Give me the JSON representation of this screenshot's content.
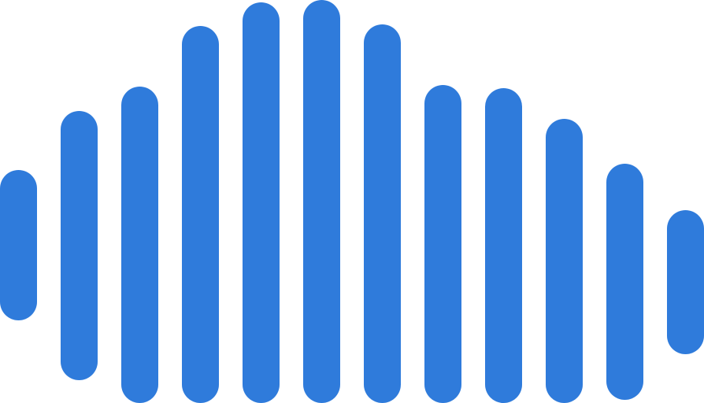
{
  "logo": {
    "icon": "audio-waveform-icon",
    "bar_color": "#2f7bdb",
    "background": "#ffffff"
  }
}
